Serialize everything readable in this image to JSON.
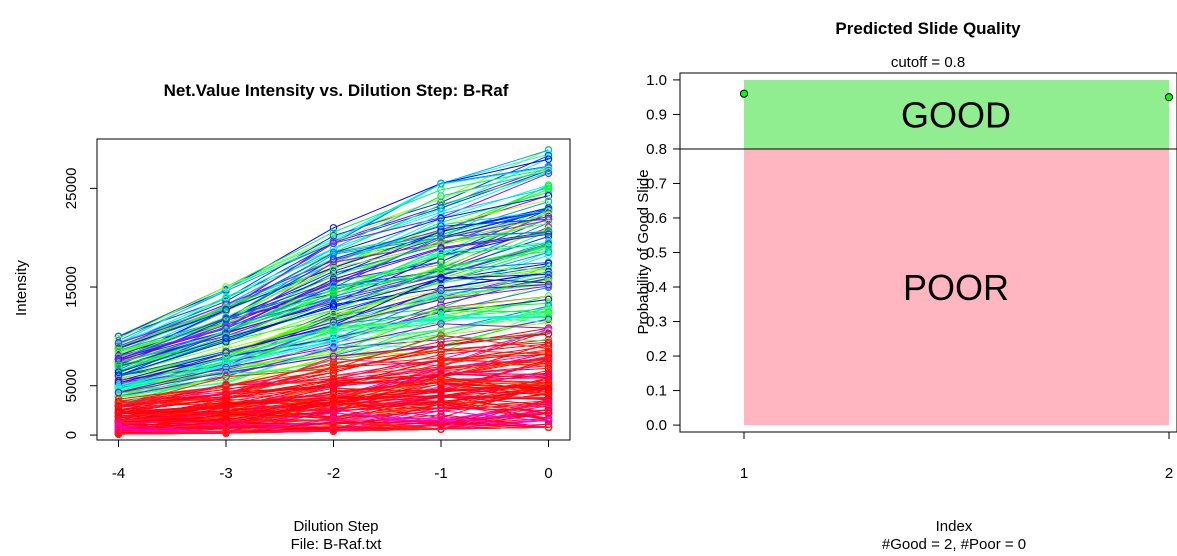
{
  "chart_data": [
    {
      "type": "line",
      "title": "Net.Value Intensity vs. Dilution Step:  B-Raf",
      "xlabel": "Dilution Step",
      "xlabel2": "File: B-Raf.txt",
      "ylabel": "Intensity",
      "x": [
        -4,
        -3,
        -2,
        -1,
        0
      ],
      "xticks": [
        "-4",
        "-3",
        "-2",
        "-1",
        "0"
      ],
      "yticks": [
        "0",
        "5000",
        "15000",
        "25000"
      ],
      "ytick_values": [
        0,
        5000,
        15000,
        25000
      ],
      "xlim": [
        -4.2,
        0.2
      ],
      "ylim": [
        -500,
        30000
      ],
      "note": "Several hundred overlapping spot series (one per spot), each with circle markers at every dilution step; palette spans red, magenta, blue, cyan, green and yellow.",
      "series_envelope": {
        "min": [
          100,
          200,
          400,
          600,
          800
        ],
        "typical": [
          2500,
          4000,
          8000,
          13000,
          20000
        ],
        "max": [
          10000,
          15000,
          21000,
          25500,
          29000
        ]
      }
    },
    {
      "type": "scatter",
      "title": "Predicted Slide Quality",
      "subtitle": "cutoff = 0.8",
      "xlabel": "Index",
      "xlabel2": "#Good = 2, #Poor = 0",
      "ylabel": "Probability of Good Slide",
      "xticks": [
        "1",
        "2"
      ],
      "yticks": [
        "0.0",
        "0.1",
        "0.2",
        "0.3",
        "0.4",
        "0.5",
        "0.6",
        "0.7",
        "0.8",
        "0.9",
        "1.0"
      ],
      "ytick_values": [
        0.0,
        0.1,
        0.2,
        0.3,
        0.4,
        0.5,
        0.6,
        0.7,
        0.8,
        0.9,
        1.0
      ],
      "xlim": [
        0.99,
        2.01
      ],
      "ylim": [
        -0.02,
        1.02
      ],
      "cutoff": 0.8,
      "regions": [
        {
          "label": "GOOD",
          "from": 0.8,
          "to": 1.0,
          "color": "#90ee90"
        },
        {
          "label": "POOR",
          "from": 0.0,
          "to": 0.8,
          "color": "#ffb6c1"
        }
      ],
      "points": [
        {
          "x": 1,
          "y": 0.96
        },
        {
          "x": 2,
          "y": 0.95
        }
      ],
      "point_color": "#00ff00"
    }
  ]
}
